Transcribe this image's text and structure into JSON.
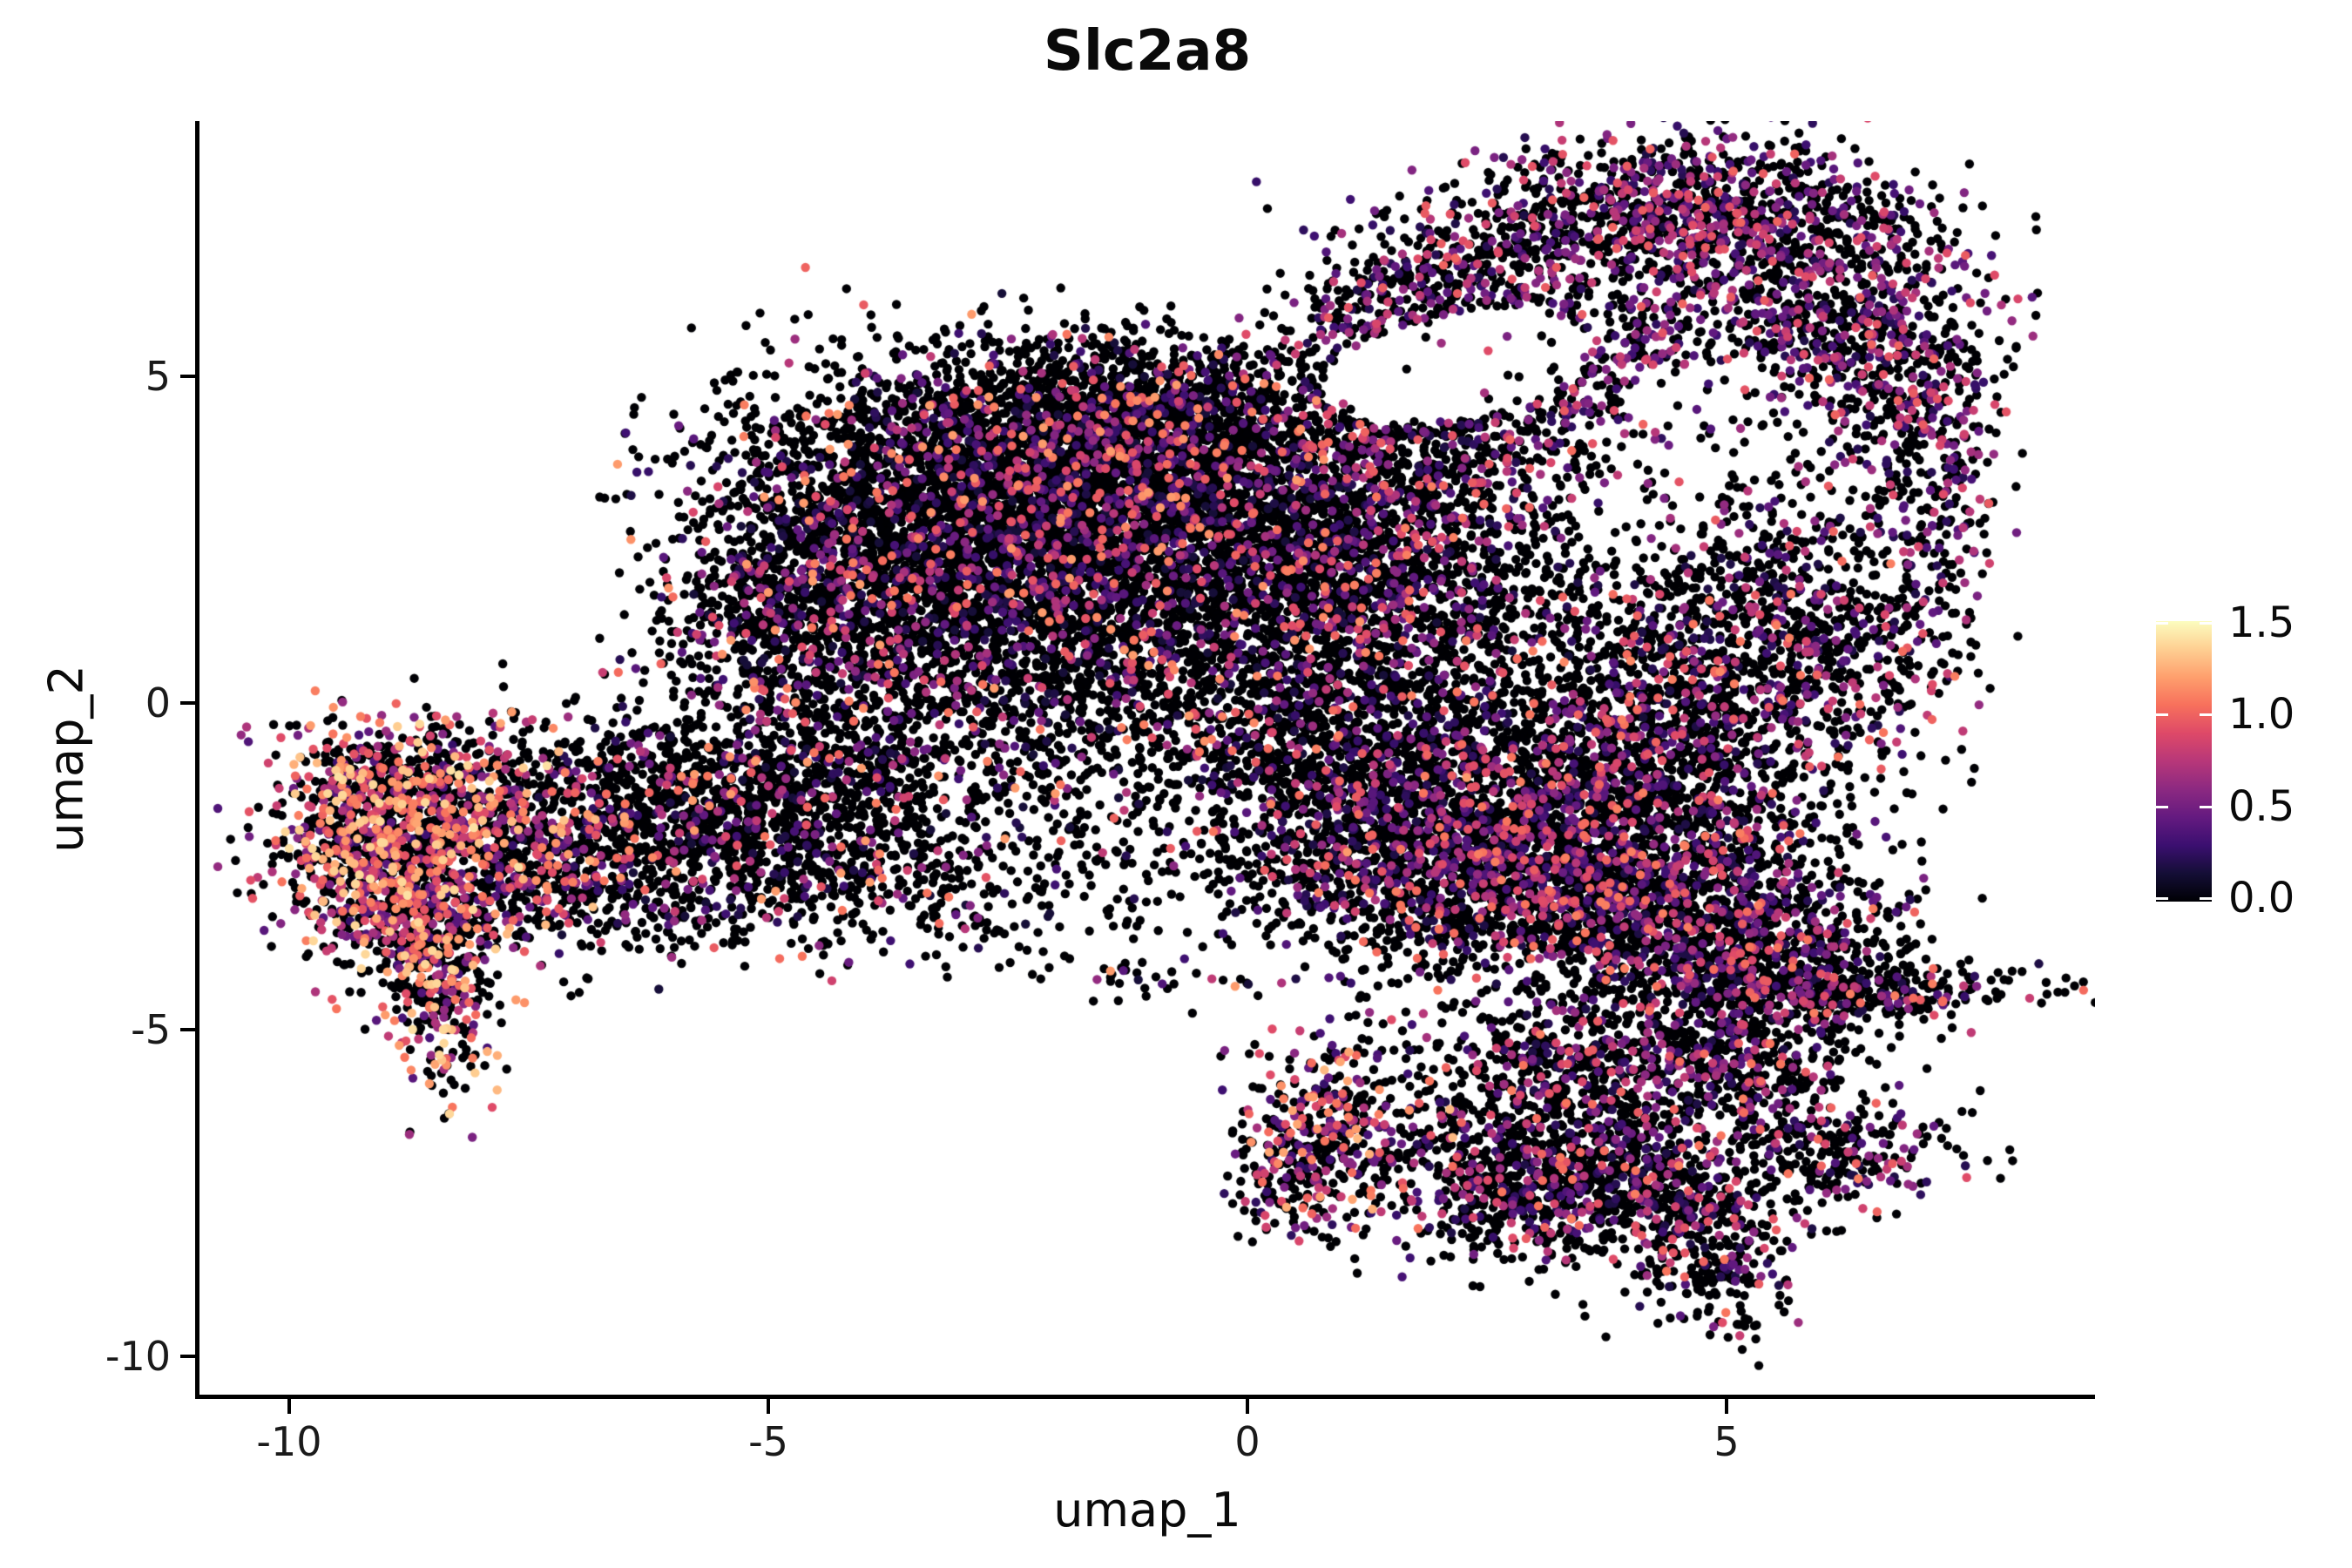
{
  "title": "Slc2a8",
  "axes": {
    "x_label": "umap_1",
    "y_label": "umap_2",
    "x_ticks": [
      {
        "label": "-10",
        "value": -10
      },
      {
        "label": "-5",
        "value": -5
      },
      {
        "label": "0",
        "value": 0
      },
      {
        "label": "5",
        "value": 5
      }
    ],
    "y_ticks": [
      {
        "label": "5",
        "value": 5
      },
      {
        "label": "0",
        "value": 0
      },
      {
        "label": "-5",
        "value": -5
      },
      {
        "label": "-10",
        "value": -10
      }
    ]
  },
  "legend": {
    "tick_labels": [
      {
        "label": "1.5",
        "value": 1.5
      },
      {
        "label": "1.0",
        "value": 1.0
      },
      {
        "label": "0.5",
        "value": 0.5
      },
      {
        "label": "0.0",
        "value": 0.0
      }
    ],
    "min": 0.0,
    "max": 1.5
  },
  "style": {
    "background": "#ffffff",
    "axis_color": "#000000",
    "title_color": "#0a0a0a",
    "tick_label_color": "#1a1a1a",
    "legend_tick_color": "#ffffff",
    "magma_stops": [
      [
        0.0,
        "#000004"
      ],
      [
        0.1,
        "#140e36"
      ],
      [
        0.2,
        "#3b0f70"
      ],
      [
        0.3,
        "#641a80"
      ],
      [
        0.4,
        "#8c2981"
      ],
      [
        0.5,
        "#b73779"
      ],
      [
        0.6,
        "#de4968"
      ],
      [
        0.7,
        "#f7705c"
      ],
      [
        0.8,
        "#fe9f6d"
      ],
      [
        0.9,
        "#fecf92"
      ],
      [
        1.0,
        "#fcfdbf"
      ]
    ]
  },
  "chart_data": {
    "type": "scatter",
    "title": "Slc2a8",
    "xlabel": "umap_1",
    "ylabel": "umap_2",
    "xlim": [
      -10.9,
      8.85
    ],
    "ylim": [
      -10.55,
      8.9
    ],
    "x_axis_ticks": [
      -10,
      -5,
      0,
      5
    ],
    "y_axis_ticks": [
      5,
      0,
      -5,
      -10
    ],
    "colormap": "magma",
    "color_domain": [
      0,
      1.5
    ],
    "colorbar_ticks": [
      0.0,
      0.5,
      1.0,
      1.5
    ],
    "point_radius_px": 5.2,
    "seed": 42,
    "color_profiles": {
      "warm": {
        "p0": 0.52,
        "vmin": 0.3,
        "vmax": 1.4,
        "pow": 0.85
      },
      "warmMid": {
        "p0": 0.6,
        "vmin": 0.25,
        "vmax": 1.3,
        "pow": 1.1
      },
      "mid": {
        "p0": 0.8,
        "vmin": 0.15,
        "vmax": 1.2,
        "pow": 1.7
      },
      "midP": {
        "p0": 0.72,
        "vmin": 0.18,
        "vmax": 1.1,
        "pow": 1.5
      },
      "purple": {
        "p0": 0.63,
        "vmin": 0.2,
        "vmax": 1.0,
        "pow": 1.3
      }
    },
    "clusters": [
      [
        "left_head_core",
        -9.15,
        -2.1,
        0.55,
        0.8,
        0,
        700,
        "warm"
      ],
      [
        "left_head_top",
        -8.55,
        -1.45,
        0.75,
        0.55,
        -25,
        500,
        "warm"
      ],
      [
        "left_hook",
        -8.45,
        -4.35,
        0.28,
        0.8,
        5,
        300,
        "warm"
      ],
      [
        "left_hook_shoulder",
        -8.6,
        -3.3,
        0.5,
        0.5,
        0,
        260,
        "warm"
      ],
      [
        "left_head_right",
        -7.6,
        -2.5,
        0.85,
        0.75,
        15,
        520,
        "warmMid"
      ],
      [
        "left_arm_mid",
        -6.4,
        -1.9,
        1.05,
        0.6,
        8,
        430,
        "mid"
      ],
      [
        "left_arm_right",
        -5.1,
        -1.6,
        0.95,
        0.55,
        8,
        400,
        "mid"
      ],
      [
        "left_arm_upper",
        -6.4,
        -0.85,
        1.2,
        0.5,
        0,
        280,
        "mid"
      ],
      [
        "left_arm_lower",
        -5.9,
        -2.95,
        1.15,
        0.5,
        -8,
        280,
        "mid"
      ],
      [
        "left_join_low",
        -4.2,
        -2.3,
        0.8,
        0.65,
        0,
        300,
        "mid"
      ],
      [
        "left_join_up",
        -4.0,
        -0.75,
        0.95,
        0.8,
        0,
        400,
        "mid"
      ],
      [
        "core_main",
        -2.9,
        3.1,
        1.3,
        1.0,
        -25,
        2400,
        "mid"
      ],
      [
        "core_upper",
        -1.4,
        3.9,
        1.05,
        0.8,
        -10,
        1600,
        "mid"
      ],
      [
        "core_left",
        -4.15,
        1.75,
        0.9,
        0.85,
        0,
        850,
        "mid"
      ],
      [
        "core_right",
        -0.2,
        3.1,
        0.95,
        0.9,
        0,
        950,
        "mid"
      ],
      [
        "core_lower",
        -1.8,
        1.6,
        1.35,
        1.0,
        0,
        1300,
        "mid"
      ],
      [
        "core_lower_right",
        0.6,
        1.5,
        1.05,
        0.95,
        0,
        800,
        "mid"
      ],
      [
        "core_right_ext",
        1.7,
        1.9,
        0.95,
        0.95,
        0,
        700,
        "midP"
      ],
      [
        "core_bottom_fringe",
        -0.3,
        -0.1,
        1.45,
        0.85,
        0,
        600,
        "mid"
      ],
      [
        "core_left_edge",
        -5.2,
        1.6,
        0.55,
        1.0,
        0,
        300,
        "mid"
      ],
      [
        "core_top",
        -0.9,
        4.65,
        1.15,
        0.5,
        0,
        500,
        "mid"
      ],
      [
        "core_left_fringe",
        -3.5,
        0.3,
        1.5,
        0.9,
        8,
        430,
        "mid"
      ],
      [
        "below_trail",
        -1.2,
        -1.7,
        1.1,
        0.8,
        -20,
        240,
        "mid"
      ],
      [
        "dotted_line",
        -1.1,
        -4.15,
        0.85,
        0.22,
        -12,
        40,
        "mid"
      ],
      [
        "below_trail2",
        -2.6,
        -2.9,
        0.7,
        0.5,
        -30,
        110,
        "mid"
      ],
      [
        "arm_join",
        1.9,
        3.8,
        0.85,
        0.8,
        0,
        520,
        "midP"
      ],
      [
        "arm_band_left",
        1.7,
        6.0,
        0.8,
        0.55,
        25,
        430,
        "purple"
      ],
      [
        "arm_band_mid",
        3.6,
        7.3,
        1.15,
        0.62,
        10,
        700,
        "purple"
      ],
      [
        "arm_band_right",
        5.1,
        7.5,
        0.85,
        0.6,
        -12,
        560,
        "purple"
      ],
      [
        "arm_bulge",
        6.2,
        6.2,
        0.7,
        0.85,
        -25,
        500,
        "purple"
      ],
      [
        "arm_descent",
        6.9,
        4.6,
        0.45,
        0.8,
        -10,
        300,
        "purple"
      ],
      [
        "arm_tip",
        7.2,
        2.8,
        0.32,
        0.95,
        -5,
        170,
        "purple"
      ],
      [
        "arm_fill",
        4.5,
        5.5,
        1.45,
        0.6,
        5,
        430,
        "purple"
      ],
      [
        "arm_lower_band",
        2.9,
        4.4,
        1.05,
        0.5,
        10,
        300,
        "purple"
      ],
      [
        "bridge_upper",
        5.3,
        1.8,
        0.8,
        1.0,
        -15,
        430,
        "midP"
      ],
      [
        "bridge_lower",
        5.0,
        0.2,
        0.95,
        0.9,
        -10,
        500,
        "midP"
      ],
      [
        "bridge_right",
        6.3,
        0.8,
        0.6,
        0.7,
        0,
        240,
        "midP"
      ],
      [
        "bridge_center",
        3.3,
        0.6,
        1.0,
        1.0,
        0,
        380,
        "mid"
      ],
      [
        "rblob_top",
        4.3,
        -0.9,
        1.05,
        0.75,
        -12,
        600,
        "midP"
      ],
      [
        "rblob_left",
        2.3,
        -1.4,
        1.15,
        0.8,
        -15,
        900,
        "midP"
      ],
      [
        "rblob_core",
        3.6,
        -2.4,
        1.2,
        0.9,
        -15,
        1150,
        "midP"
      ],
      [
        "rblob_right",
        4.8,
        -3.3,
        1.0,
        0.8,
        -15,
        900,
        "midP"
      ],
      [
        "rblob_bottomleft",
        2.5,
        -3.0,
        0.95,
        0.7,
        0,
        700,
        "midP"
      ],
      [
        "rblob_far_left",
        1.2,
        -2.3,
        0.85,
        0.7,
        0,
        480,
        "midP"
      ],
      [
        "rblob_top_left",
        0.8,
        -0.7,
        0.75,
        0.65,
        0,
        320,
        "mid"
      ],
      [
        "rblob_lower_lobe",
        5.7,
        -4.2,
        0.7,
        0.5,
        -20,
        350,
        "midP"
      ],
      [
        "tentacle_right",
        6.7,
        -4.4,
        0.95,
        0.24,
        0,
        190,
        "midP"
      ],
      [
        "spur_end",
        6.2,
        -6.9,
        0.6,
        0.45,
        10,
        240,
        "midP"
      ],
      [
        "spur_mid",
        5.4,
        -5.8,
        0.55,
        0.5,
        35,
        220,
        "midP"
      ],
      [
        "rblob_spur_join",
        4.9,
        -5.0,
        0.65,
        0.5,
        20,
        260,
        "midP"
      ],
      [
        "island",
        0.9,
        -6.6,
        0.55,
        0.75,
        0,
        400,
        "warmMid"
      ],
      [
        "island_tip",
        0.5,
        -7.4,
        0.32,
        0.4,
        0,
        100,
        "warmMid"
      ],
      [
        "bottom_blob",
        3.2,
        -6.6,
        0.85,
        0.8,
        0,
        750,
        "midP"
      ],
      [
        "bottom_blob_low",
        4.0,
        -7.5,
        0.65,
        0.65,
        0,
        420,
        "midP"
      ],
      [
        "bottom_tail",
        4.85,
        -8.4,
        0.42,
        0.7,
        5,
        260,
        "midP"
      ],
      [
        "bottom_blob_left",
        2.6,
        -7.6,
        0.5,
        0.5,
        0,
        220,
        "midP"
      ],
      [
        "bottom_join",
        3.5,
        -5.4,
        0.75,
        0.45,
        0,
        280,
        "midP"
      ]
    ],
    "holes": [
      [
        2.2,
        5.15,
        1.45,
        0.8,
        18,
        0.93
      ],
      [
        4.7,
        4.75,
        0.75,
        0.45,
        10,
        0.85
      ]
    ]
  }
}
